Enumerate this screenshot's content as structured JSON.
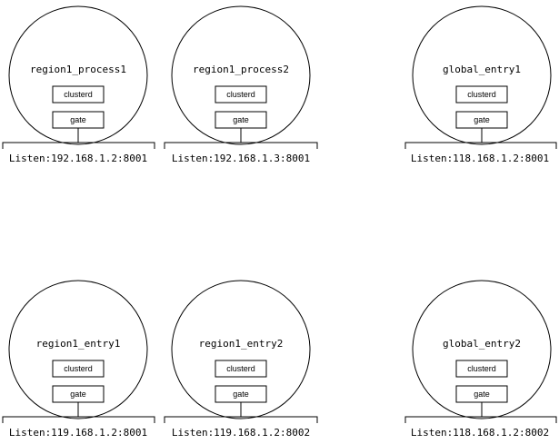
{
  "nodes": [
    {
      "title": "region1_process1",
      "clusterd": "clusterd",
      "gate": "gate",
      "listen": "Listen:192.168.1.2:8001"
    },
    {
      "title": "region1_process2",
      "clusterd": "clusterd",
      "gate": "gate",
      "listen": "Listen:192.168.1.3:8001"
    },
    {
      "title": "global_entry1",
      "clusterd": "clusterd",
      "gate": "gate",
      "listen": "Listen:118.168.1.2:8001"
    },
    {
      "title": "region1_entry1",
      "clusterd": "clusterd",
      "gate": "gate",
      "listen": "Listen:119.168.1.2:8001"
    },
    {
      "title": "region1_entry2",
      "clusterd": "clusterd",
      "gate": "gate",
      "listen": "Listen:119.168.1.2:8002"
    },
    {
      "title": "global_entry2",
      "clusterd": "clusterd",
      "gate": "gate",
      "listen": "Listen:118.168.1.2:8002"
    }
  ]
}
